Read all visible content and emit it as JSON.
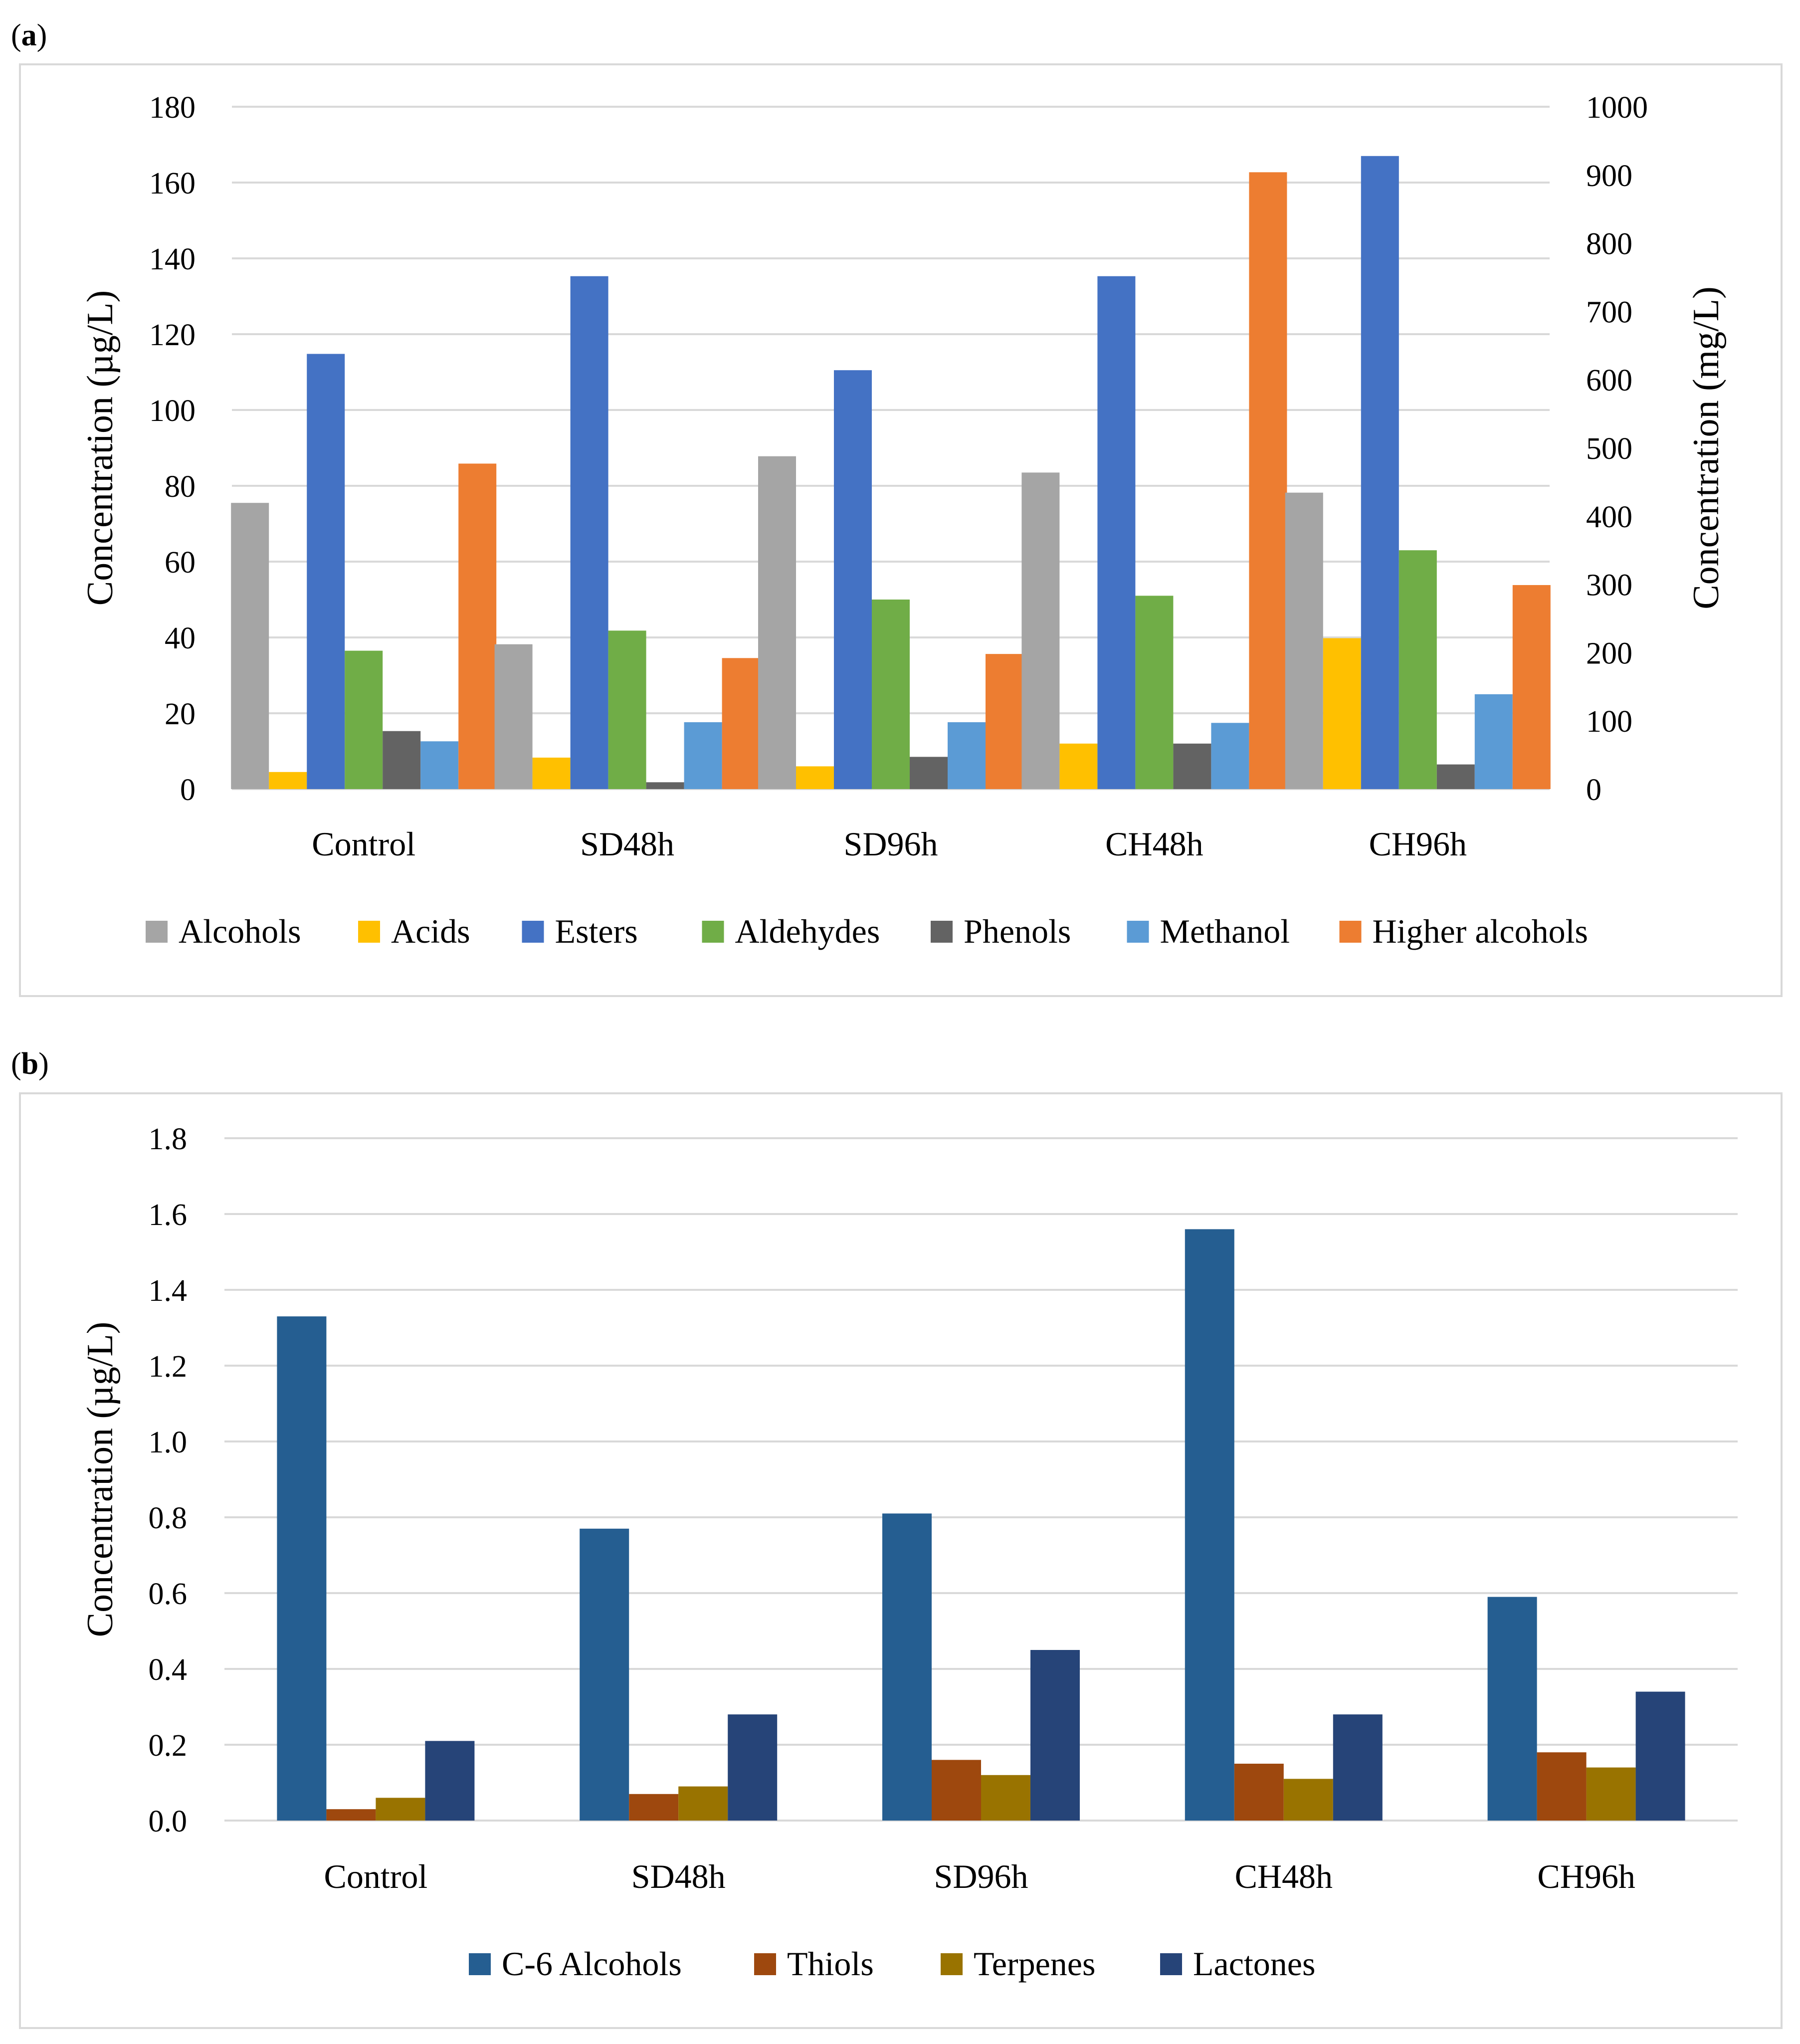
{
  "panels": [
    {
      "label_open": "(",
      "label_letter": "a",
      "label_close": ")"
    },
    {
      "label_open": "(",
      "label_letter": "b",
      "label_close": ")"
    }
  ],
  "chart_data": [
    {
      "type": "bar",
      "title": "",
      "ylabel": "Concentration (µg/L)",
      "y2label": "Concentration (mg/L)",
      "ylim": [
        0,
        180
      ],
      "yticks": [
        0,
        20,
        40,
        60,
        80,
        100,
        120,
        140,
        160,
        180
      ],
      "y2lim": [
        0,
        1000
      ],
      "y2ticks": [
        0,
        100,
        200,
        300,
        400,
        500,
        600,
        700,
        800,
        900,
        1000
      ],
      "grid": true,
      "legend_position": "bottom",
      "categories": [
        "Control",
        "SD48h",
        "SD96h",
        "CH48h",
        "CH96h"
      ],
      "series": [
        {
          "name": "Alcohols",
          "axis": "left",
          "color": "#a5a5a5",
          "values": [
            75.5,
            38.2,
            87.8,
            83.5,
            78.2
          ]
        },
        {
          "name": "Acids",
          "axis": "left",
          "color": "#ffc000",
          "values": [
            4.5,
            8.3,
            6.0,
            12.0,
            39.8
          ]
        },
        {
          "name": "Esters",
          "axis": "left",
          "color": "#4472c4",
          "values": [
            114.8,
            135.3,
            110.5,
            135.3,
            167.0
          ]
        },
        {
          "name": "Aldehydes",
          "axis": "left",
          "color": "#70ad47",
          "values": [
            36.5,
            41.8,
            50.0,
            51.0,
            63.0
          ]
        },
        {
          "name": "Phenols",
          "axis": "left",
          "color": "#636363",
          "values": [
            15.3,
            1.8,
            8.5,
            12.0,
            6.5
          ]
        },
        {
          "name": "Methanol",
          "axis": "right",
          "color": "#5b9bd5",
          "values": [
            70,
            98,
            98,
            97,
            139
          ]
        },
        {
          "name": "Higher alcohols",
          "axis": "right",
          "color": "#ed7d31",
          "values": [
            477,
            192,
            198,
            904,
            299
          ]
        }
      ]
    },
    {
      "type": "bar",
      "title": "",
      "ylabel": "Concentration (µg/L)",
      "ylim": [
        0,
        1.8
      ],
      "yticks": [
        "0.0",
        "0.2",
        "0.4",
        "0.6",
        "0.8",
        "1.0",
        "1.2",
        "1.4",
        "1.6",
        "1.8"
      ],
      "grid": true,
      "legend_position": "bottom",
      "categories": [
        "Control",
        "SD48h",
        "SD96h",
        "CH48h",
        "CH96h"
      ],
      "series": [
        {
          "name": "C-6 Alcohols",
          "color": "#255e91",
          "values": [
            1.33,
            0.77,
            0.81,
            1.56,
            0.59
          ]
        },
        {
          "name": "Thiols",
          "color": "#9e480e",
          "values": [
            0.03,
            0.07,
            0.16,
            0.15,
            0.18
          ]
        },
        {
          "name": "Terpenes",
          "color": "#997300",
          "values": [
            0.06,
            0.09,
            0.12,
            0.11,
            0.14
          ]
        },
        {
          "name": "Lactones",
          "color": "#264478",
          "values": [
            0.21,
            0.28,
            0.45,
            0.28,
            0.34
          ]
        }
      ]
    }
  ]
}
